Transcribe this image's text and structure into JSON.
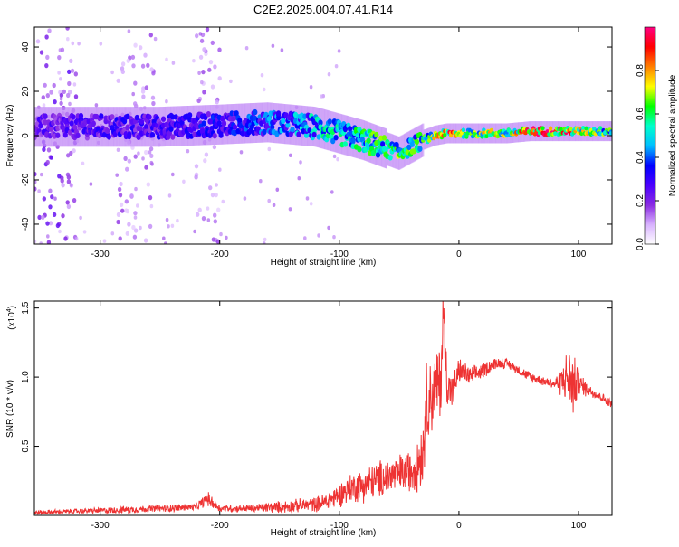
{
  "title": "C2E2.2025.004.07.41.R14",
  "colorbar": {
    "label": "Normalized spectral amplitude",
    "ticks": [
      "0.0",
      "0.2",
      "0.4",
      "0.6",
      "0.8"
    ],
    "tick_values": [
      0.0,
      0.2,
      0.4,
      0.6,
      0.8
    ],
    "range": [
      0,
      1
    ],
    "colors": [
      "#ffffff",
      "#d9b3ff",
      "#8a2be2",
      "#4b00ff",
      "#0000ff",
      "#00bfff",
      "#00ffcc",
      "#00ff00",
      "#ffff00",
      "#ff8000",
      "#ff0000",
      "#ff0080"
    ]
  },
  "chart_data": [
    {
      "type": "heatmap",
      "title": "C2E2.2025.004.07.41.R14",
      "xlabel": "Height of straight line (km)",
      "ylabel": "Frequency (Hz)",
      "xlim": [
        -355,
        128
      ],
      "ylim": [
        -49,
        49
      ],
      "x_ticks": [
        -300,
        -200,
        -100,
        0,
        100
      ],
      "x_tick_labels": [
        "-300",
        "-200",
        "-100",
        "0",
        "100"
      ],
      "y_ticks": [
        -40,
        -20,
        0,
        20,
        40
      ],
      "y_tick_labels": [
        "-40",
        "-20",
        "0",
        "20",
        "40"
      ],
      "ridge": {
        "x": [
          -350,
          -300,
          -250,
          -200,
          -160,
          -140,
          -120,
          -100,
          -80,
          -60,
          -50,
          -40,
          -30,
          -20,
          -10,
          0,
          20,
          40,
          60,
          80,
          100,
          128
        ],
        "y": [
          4,
          4,
          4,
          5,
          6,
          5,
          4,
          1,
          -2,
          -6,
          -8,
          -5,
          -2,
          0,
          1,
          1,
          1,
          1,
          2,
          2,
          2,
          2
        ],
        "amplitude": [
          0.25,
          0.3,
          0.3,
          0.35,
          0.4,
          0.45,
          0.5,
          0.55,
          0.6,
          0.62,
          0.65,
          0.62,
          0.6,
          0.7,
          0.85,
          0.8,
          0.7,
          0.72,
          0.9,
          0.95,
          0.75,
          0.6
        ]
      },
      "noise_bands": [
        {
          "x_from": -355,
          "x_to": -320,
          "amplitude": 0.22
        },
        {
          "x_from": -285,
          "x_to": -255,
          "amplitude": 0.15
        },
        {
          "x_from": -220,
          "x_to": -200,
          "amplitude": 0.15
        }
      ]
    },
    {
      "type": "line",
      "xlabel": "Height of straight line (km)",
      "ylabel": "SNR (10 * v/v)",
      "y_multiplier_label": "(x10",
      "y_multiplier_exp": "4",
      "xlim": [
        -355,
        128
      ],
      "ylim": [
        0,
        1.55
      ],
      "x_ticks": [
        -300,
        -200,
        -100,
        0,
        100
      ],
      "x_tick_labels": [
        "-300",
        "-200",
        "-100",
        "0",
        "100"
      ],
      "y_ticks": [
        0.5,
        1.0,
        1.5
      ],
      "y_tick_labels": [
        "0.5",
        "1.0",
        "1.5"
      ],
      "series": [
        {
          "color": "#ee3333",
          "x": [
            -355,
            -320,
            -280,
            -250,
            -220,
            -210,
            -200,
            -180,
            -150,
            -120,
            -110,
            -100,
            -90,
            -80,
            -70,
            -60,
            -50,
            -40,
            -30,
            -28,
            -25,
            -20,
            -15,
            -13,
            -10,
            -5,
            0,
            10,
            20,
            30,
            40,
            60,
            80,
            90,
            95,
            100,
            110,
            120,
            128
          ],
          "y": [
            0.02,
            0.03,
            0.04,
            0.05,
            0.06,
            0.12,
            0.05,
            0.05,
            0.06,
            0.08,
            0.1,
            0.15,
            0.2,
            0.22,
            0.25,
            0.28,
            0.3,
            0.32,
            0.45,
            0.8,
            0.85,
            0.9,
            1.0,
            1.5,
            0.95,
            0.9,
            1.05,
            1.0,
            1.05,
            1.1,
            1.1,
            1.0,
            0.95,
            1.0,
            0.95,
            0.95,
            0.9,
            0.85,
            0.8
          ],
          "amplitude": [
            0.02,
            0.02,
            0.03,
            0.03,
            0.03,
            0.06,
            0.03,
            0.03,
            0.05,
            0.06,
            0.08,
            0.1,
            0.12,
            0.14,
            0.15,
            0.16,
            0.16,
            0.18,
            0.3,
            0.35,
            0.35,
            0.3,
            0.35,
            0.2,
            0.2,
            0.15,
            0.1,
            0.08,
            0.07,
            0.05,
            0.04,
            0.04,
            0.04,
            0.2,
            0.3,
            0.1,
            0.05,
            0.04,
            0.04
          ]
        }
      ]
    }
  ]
}
